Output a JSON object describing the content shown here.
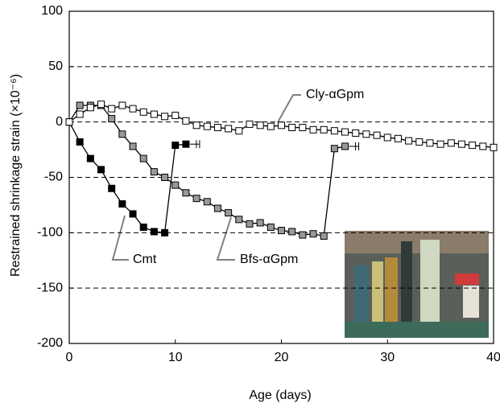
{
  "chart_data": {
    "type": "line",
    "x_label": "Age (days)",
    "y_label": "Restrained shrinkage strain (×10⁻⁶)",
    "xlim": [
      0,
      40
    ],
    "xticks": [
      0,
      10,
      20,
      30,
      40
    ],
    "ylim": [
      -200,
      100
    ],
    "yticks": [
      -200,
      -150,
      -100,
      -50,
      0,
      50,
      100
    ],
    "grid": true,
    "series": [
      {
        "name": "Cmt",
        "color": "#000000",
        "x": [
          0,
          1,
          2,
          3,
          4,
          5,
          6,
          7,
          8,
          9,
          10,
          11
        ],
        "values": [
          0,
          -18,
          -33,
          -43,
          -60,
          -74,
          -83,
          -95,
          -99,
          -100,
          -21,
          -20
        ]
      },
      {
        "name": "Bfs-αGpm",
        "color": "#999999",
        "x": [
          0,
          1,
          2,
          3,
          4,
          5,
          6,
          7,
          8,
          9,
          10,
          11,
          12,
          13,
          14,
          15,
          16,
          17,
          18,
          19,
          20,
          21,
          22,
          23,
          24,
          25,
          26
        ],
        "values": [
          0,
          15,
          15,
          15,
          3,
          -11,
          -22,
          -33,
          -45,
          -50,
          -57,
          -64,
          -69,
          -72,
          -78,
          -82,
          -88,
          -92,
          -91,
          -95,
          -98,
          -99,
          -102,
          -101,
          -103,
          -24,
          -22
        ]
      },
      {
        "name": "Cly-αGpm",
        "color": "#ffffff",
        "x": [
          0,
          1,
          2,
          3,
          4,
          5,
          6,
          7,
          8,
          9,
          10,
          11,
          12,
          13,
          14,
          15,
          16,
          17,
          18,
          19,
          20,
          21,
          22,
          23,
          24,
          25,
          26,
          27,
          28,
          29,
          30,
          31,
          32,
          33,
          34,
          35,
          36,
          37,
          38,
          39,
          40
        ],
        "values": [
          0,
          7,
          13,
          16,
          12,
          15,
          12,
          9,
          7,
          5,
          6,
          1,
          -3,
          -4,
          -5,
          -6,
          -8,
          -2,
          -3,
          -4,
          -3,
          -5,
          -5,
          -7,
          -7,
          -8,
          -9,
          -10,
          -11,
          -12,
          -14,
          -15,
          -17,
          -18,
          -19,
          -20,
          -19,
          -20,
          -21,
          -22,
          -23
        ]
      }
    ]
  }
}
